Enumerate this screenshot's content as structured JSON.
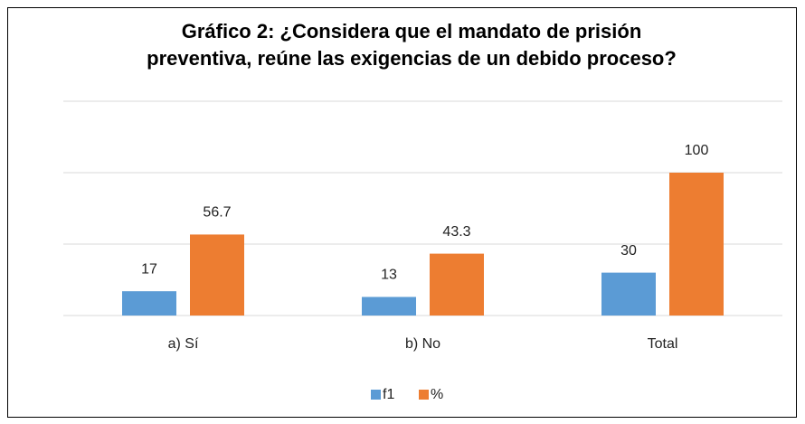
{
  "chart_data": {
    "type": "bar",
    "title": "Gráfico 2: ¿Considera que el mandato de prisión preventiva, reúne las exigencias de un debido proceso?",
    "categories": [
      "a) Sí",
      "b) No",
      "Total"
    ],
    "series": [
      {
        "name": "f1",
        "color": "#5b9bd5",
        "values": [
          17,
          13,
          30
        ]
      },
      {
        "name": "%",
        "color": "#ed7d31",
        "values": [
          56.7,
          43.3,
          100
        ]
      }
    ],
    "ylim": [
      0,
      150
    ],
    "yticks": [
      0,
      50,
      100,
      150
    ],
    "grid": true,
    "legend": "bottom"
  }
}
